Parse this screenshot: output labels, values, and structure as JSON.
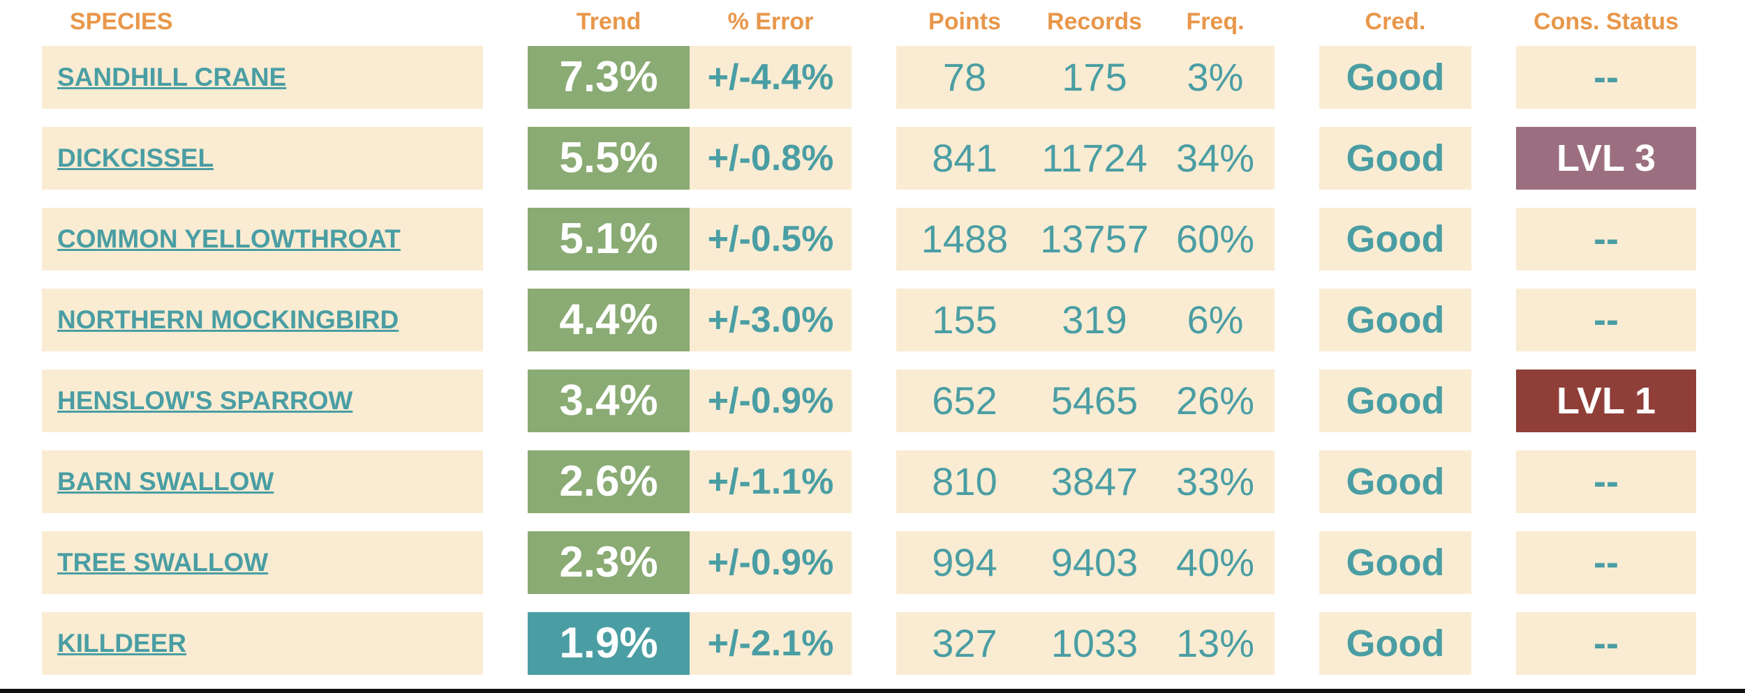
{
  "colors": {
    "header": "#e8974a",
    "text_teal": "#4a9ea3",
    "cell_bg": "#faecd3",
    "trend_green": "#8aab73",
    "trend_teal": "#4a9ea3",
    "lvl3": "#9b6f80",
    "lvl1": "#8f3f38"
  },
  "headers": {
    "species": "SPECIES",
    "trend": "Trend",
    "error": "% Error",
    "points": "Points",
    "records": "Records",
    "freq": "Freq.",
    "cred": "Cred.",
    "cons": "Cons. Status"
  },
  "rows": [
    {
      "species": "SANDHILL CRANE",
      "trend": "7.3%",
      "trend_color": "green",
      "error": "+/-4.4%",
      "points": "78",
      "records": "175",
      "freq": "3%",
      "cred": "Good",
      "cons": "--",
      "cons_level": "none"
    },
    {
      "species": "DICKCISSEL",
      "trend": "5.5%",
      "trend_color": "green",
      "error": "+/-0.8%",
      "points": "841",
      "records": "11724",
      "freq": "34%",
      "cred": "Good",
      "cons": "LVL 3",
      "cons_level": "lvl3"
    },
    {
      "species": "COMMON YELLOWTHROAT",
      "trend": "5.1%",
      "trend_color": "green",
      "error": "+/-0.5%",
      "points": "1488",
      "records": "13757",
      "freq": "60%",
      "cred": "Good",
      "cons": "--",
      "cons_level": "none"
    },
    {
      "species": "NORTHERN MOCKINGBIRD",
      "trend": "4.4%",
      "trend_color": "green",
      "error": "+/-3.0%",
      "points": "155",
      "records": "319",
      "freq": "6%",
      "cred": "Good",
      "cons": "--",
      "cons_level": "none"
    },
    {
      "species": "HENSLOW'S SPARROW",
      "trend": "3.4%",
      "trend_color": "green",
      "error": "+/-0.9%",
      "points": "652",
      "records": "5465",
      "freq": "26%",
      "cred": "Good",
      "cons": "LVL 1",
      "cons_level": "lvl1"
    },
    {
      "species": "BARN SWALLOW",
      "trend": "2.6%",
      "trend_color": "green",
      "error": "+/-1.1%",
      "points": "810",
      "records": "3847",
      "freq": "33%",
      "cred": "Good",
      "cons": "--",
      "cons_level": "none"
    },
    {
      "species": "TREE SWALLOW",
      "trend": "2.3%",
      "trend_color": "green",
      "error": "+/-0.9%",
      "points": "994",
      "records": "9403",
      "freq": "40%",
      "cred": "Good",
      "cons": "--",
      "cons_level": "none"
    },
    {
      "species": "KILLDEER",
      "trend": "1.9%",
      "trend_color": "teal",
      "error": "+/-2.1%",
      "points": "327",
      "records": "1033",
      "freq": "13%",
      "cred": "Good",
      "cons": "--",
      "cons_level": "none"
    }
  ]
}
